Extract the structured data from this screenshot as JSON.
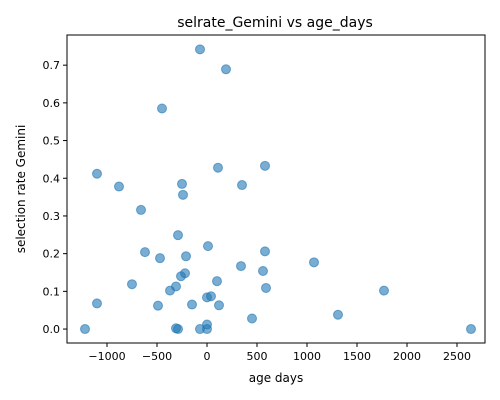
{
  "chart_data": {
    "type": "scatter",
    "title": "selrate_Gemini vs age_days",
    "xlabel": "age days",
    "ylabel": "selection rate Gemini",
    "xlim": [
      -1400,
      2780
    ],
    "ylim": [
      -0.037,
      0.78
    ],
    "xticks": [
      -1000,
      -500,
      0,
      500,
      1000,
      1500,
      2000,
      2500
    ],
    "yticks": [
      0.0,
      0.1,
      0.2,
      0.3,
      0.4,
      0.5,
      0.6,
      0.7
    ],
    "grid": false,
    "legend": "none",
    "marker_color": "#1f77b4",
    "marker_alpha": 0.6,
    "points": [
      {
        "x": -1220,
        "y": 0.0
      },
      {
        "x": -1100,
        "y": 0.068
      },
      {
        "x": -1100,
        "y": 0.412
      },
      {
        "x": -880,
        "y": 0.378
      },
      {
        "x": -750,
        "y": 0.119
      },
      {
        "x": -660,
        "y": 0.316
      },
      {
        "x": -620,
        "y": 0.204
      },
      {
        "x": -490,
        "y": 0.062
      },
      {
        "x": -470,
        "y": 0.188
      },
      {
        "x": -450,
        "y": 0.585
      },
      {
        "x": -370,
        "y": 0.102
      },
      {
        "x": -310,
        "y": 0.113
      },
      {
        "x": -310,
        "y": 0.002
      },
      {
        "x": -290,
        "y": 0.0
      },
      {
        "x": -290,
        "y": 0.249
      },
      {
        "x": -260,
        "y": 0.14
      },
      {
        "x": -250,
        "y": 0.385
      },
      {
        "x": -240,
        "y": 0.356
      },
      {
        "x": -220,
        "y": 0.148
      },
      {
        "x": -210,
        "y": 0.193
      },
      {
        "x": -150,
        "y": 0.065
      },
      {
        "x": -70,
        "y": 0.0
      },
      {
        "x": -70,
        "y": 0.742
      },
      {
        "x": 0,
        "y": 0.084
      },
      {
        "x": 0,
        "y": 0.012
      },
      {
        "x": 0,
        "y": 0.0
      },
      {
        "x": 10,
        "y": 0.22
      },
      {
        "x": 40,
        "y": 0.087
      },
      {
        "x": 100,
        "y": 0.127
      },
      {
        "x": 110,
        "y": 0.428
      },
      {
        "x": 120,
        "y": 0.063
      },
      {
        "x": 190,
        "y": 0.689
      },
      {
        "x": 340,
        "y": 0.167
      },
      {
        "x": 350,
        "y": 0.382
      },
      {
        "x": 450,
        "y": 0.028
      },
      {
        "x": 560,
        "y": 0.154
      },
      {
        "x": 580,
        "y": 0.206
      },
      {
        "x": 580,
        "y": 0.433
      },
      {
        "x": 590,
        "y": 0.109
      },
      {
        "x": 1070,
        "y": 0.177
      },
      {
        "x": 1310,
        "y": 0.038
      },
      {
        "x": 1770,
        "y": 0.102
      },
      {
        "x": 2640,
        "y": 0.0
      }
    ]
  }
}
